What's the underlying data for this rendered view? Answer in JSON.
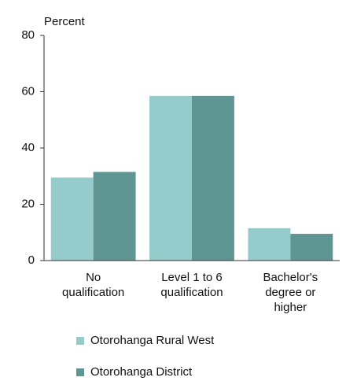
{
  "chart_data": {
    "type": "bar",
    "y_label": "Percent",
    "categories": [
      "No qualification",
      "Level 1 to 6 qualification",
      "Bachelor's degree or higher"
    ],
    "series": [
      {
        "name": "Otorohanga Rural West",
        "color": "#96cbcb",
        "values": [
          29.5,
          58.5,
          11.5
        ]
      },
      {
        "name": "Otorohanga District",
        "color": "#5f9593",
        "values": [
          31.5,
          58.5,
          9.5
        ]
      }
    ],
    "ylim": [
      0,
      80
    ],
    "yticks": [
      0,
      20,
      40,
      60,
      80
    ],
    "grid": false,
    "legend": "bottom"
  }
}
